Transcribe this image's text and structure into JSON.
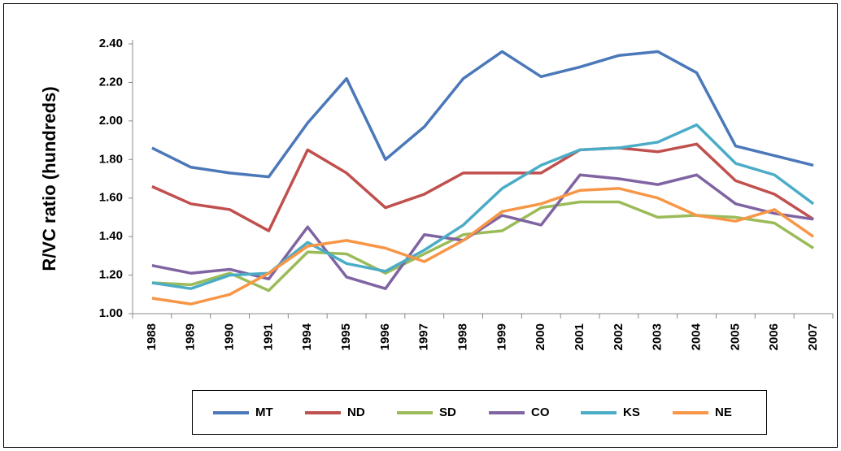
{
  "chart_data": {
    "type": "line",
    "y_label": "R/VC ratio (hundreds)",
    "categories": [
      "1988",
      "1989",
      "1990",
      "1991",
      "1994",
      "1995",
      "1996",
      "1997",
      "1998",
      "1999",
      "2000",
      "2001",
      "2002",
      "2003",
      "2004",
      "2005",
      "2006",
      "2007"
    ],
    "ylim": [
      1.0,
      2.4
    ],
    "yticks": [
      {
        "value": 1.0,
        "label": "1.00"
      },
      {
        "value": 1.2,
        "label": "1.20"
      },
      {
        "value": 1.4,
        "label": "1.40"
      },
      {
        "value": 1.6,
        "label": "1.60"
      },
      {
        "value": 1.8,
        "label": "1.80"
      },
      {
        "value": 2.0,
        "label": "2.00"
      },
      {
        "value": 2.2,
        "label": "2.20"
      },
      {
        "value": 2.4,
        "label": "2.40"
      }
    ],
    "grid": false,
    "legend": "bottom",
    "series": [
      {
        "name": "MT",
        "color": "#4a78b8",
        "values": [
          1.86,
          1.76,
          1.73,
          1.71,
          1.99,
          2.22,
          1.8,
          1.97,
          2.22,
          2.36,
          2.23,
          2.28,
          2.34,
          2.36,
          2.25,
          1.87,
          1.82,
          1.77
        ]
      },
      {
        "name": "ND",
        "color": "#c0504d",
        "values": [
          1.66,
          1.57,
          1.54,
          1.43,
          1.85,
          1.73,
          1.55,
          1.62,
          1.73,
          1.73,
          1.73,
          1.85,
          1.86,
          1.84,
          1.88,
          1.69,
          1.62,
          1.49
        ]
      },
      {
        "name": "SD",
        "color": "#9bbb59",
        "values": [
          1.16,
          1.15,
          1.21,
          1.12,
          1.32,
          1.31,
          1.21,
          1.31,
          1.41,
          1.43,
          1.55,
          1.58,
          1.58,
          1.5,
          1.51,
          1.5,
          1.47,
          1.34
        ]
      },
      {
        "name": "CO",
        "color": "#8064a2",
        "values": [
          1.25,
          1.21,
          1.23,
          1.18,
          1.45,
          1.19,
          1.13,
          1.41,
          1.38,
          1.51,
          1.46,
          1.72,
          1.7,
          1.67,
          1.72,
          1.57,
          1.52,
          1.49
        ]
      },
      {
        "name": "KS",
        "color": "#4bacc6",
        "values": [
          1.16,
          1.13,
          1.2,
          1.21,
          1.37,
          1.26,
          1.22,
          1.33,
          1.46,
          1.65,
          1.77,
          1.85,
          1.86,
          1.89,
          1.98,
          1.78,
          1.72,
          1.57
        ]
      },
      {
        "name": "NE",
        "color": "#f79646",
        "values": [
          1.08,
          1.05,
          1.1,
          1.21,
          1.35,
          1.38,
          1.34,
          1.27,
          1.38,
          1.53,
          1.57,
          1.64,
          1.65,
          1.6,
          1.51,
          1.48,
          1.54,
          1.4
        ]
      }
    ]
  }
}
